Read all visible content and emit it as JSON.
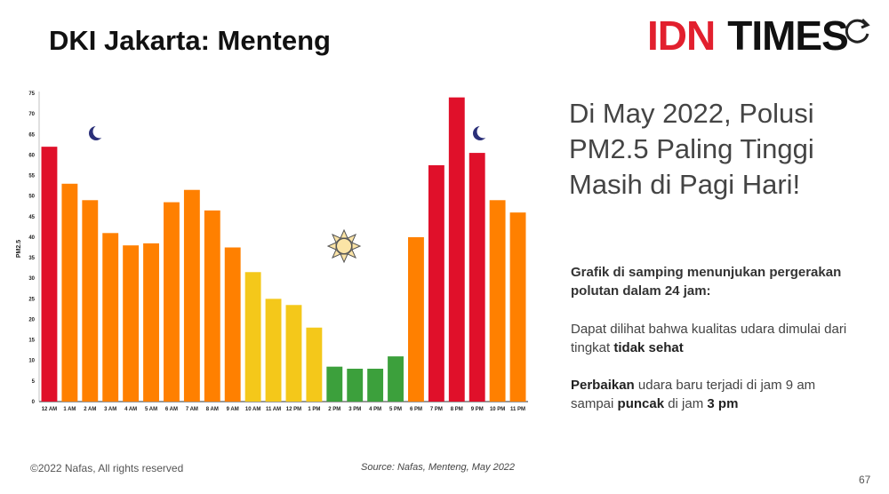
{
  "slide": {
    "title": "DKI Jakarta: Menteng",
    "logo_idn": "IDN",
    "logo_times": "TIMES",
    "headline": "Di May 2022, Polusi PM2.5 Paling Tinggi Masih di Pagi Hari!",
    "para1": "Grafik di samping menunjukan pergerakan polutan dalam 24 jam:",
    "para2_a": "Dapat dilihat bahwa kualitas udara dimulai dari tingkat ",
    "para2_b": "tidak sehat",
    "para3_a": "Perbaikan",
    "para3_b": " udara baru terjadi di jam 9 am sampai ",
    "para3_c": "puncak",
    "para3_d": " di jam ",
    "para3_e": "3 pm",
    "copyright": "©2022 Nafas, All rights reserved",
    "source": "Source: Nafas, Menteng, May 2022",
    "page_number": "67",
    "icons": [
      "moon-icon",
      "sun-icon",
      "moon-icon"
    ]
  },
  "colors": {
    "red": "#e0102a",
    "orange": "#ff8000",
    "yellow": "#f4c81a",
    "green": "#3ca03c",
    "brand_red": "#e2202e"
  },
  "chart_data": {
    "type": "bar",
    "ylabel": "PM2.5",
    "xlabel": "",
    "ylim": [
      0,
      75
    ],
    "yticks": [
      0,
      5,
      10,
      15,
      20,
      25,
      30,
      35,
      40,
      45,
      50,
      55,
      60,
      65,
      70,
      75
    ],
    "categories": [
      "12 AM",
      "1 AM",
      "2 AM",
      "3 AM",
      "4 AM",
      "5 AM",
      "6 AM",
      "7 AM",
      "8 AM",
      "9 AM",
      "10 AM",
      "11 AM",
      "12 PM",
      "1 PM",
      "2 PM",
      "3 PM",
      "4 PM",
      "5 PM",
      "6 PM",
      "7 PM",
      "8 PM",
      "9 PM",
      "10 PM",
      "11 PM"
    ],
    "values": [
      62,
      53,
      49,
      41,
      38,
      38.5,
      48.5,
      51.5,
      46.5,
      37.5,
      31.5,
      25,
      23.5,
      18,
      8.5,
      8,
      8,
      11,
      40,
      57.5,
      74,
      60.5,
      49,
      46
    ],
    "bar_colors": [
      "#e0102a",
      "#ff8000",
      "#ff8000",
      "#ff8000",
      "#ff8000",
      "#ff8000",
      "#ff8000",
      "#ff8000",
      "#ff8000",
      "#ff8000",
      "#f4c81a",
      "#f4c81a",
      "#f4c81a",
      "#f4c81a",
      "#3ca03c",
      "#3ca03c",
      "#3ca03c",
      "#3ca03c",
      "#ff8000",
      "#e0102a",
      "#e0102a",
      "#e0102a",
      "#ff8000",
      "#ff8000"
    ],
    "grid": false
  }
}
